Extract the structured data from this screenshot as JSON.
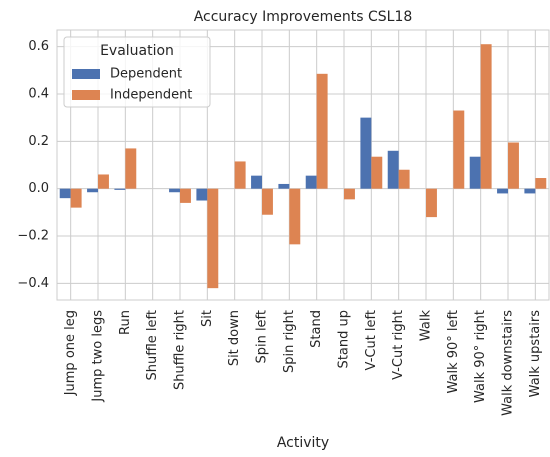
{
  "chart_data": {
    "type": "bar",
    "title": "Accuracy Improvements CSL18",
    "x_label": "Activity",
    "legend_title": "Evaluation",
    "legend": "upper left",
    "grid": true,
    "categories": [
      "Jump one leg",
      "Jump two legs",
      "Run",
      "Shuffle left",
      "Shuffle right",
      "Sit",
      "Sit down",
      "Spin left",
      "Spin right",
      "Stand",
      "Stand up",
      "V-Cut left",
      "V-Cut right",
      "Walk",
      "Walk 90° left",
      "Walk 90° right",
      "Walk downstairs",
      "Walk upstairs"
    ],
    "series": [
      {
        "name": "Dependent",
        "color": "#4c72b0",
        "values": [
          -0.04,
          -0.015,
          -0.005,
          0,
          -0.015,
          -0.05,
          0,
          0.055,
          0.02,
          0.055,
          0,
          0.3,
          0.16,
          0,
          0,
          0.135,
          -0.02,
          -0.02
        ]
      },
      {
        "name": "Independent",
        "color": "#dd8452",
        "values": [
          -0.08,
          0.06,
          0.17,
          0,
          -0.06,
          -0.42,
          0.115,
          -0.11,
          -0.235,
          0.485,
          -0.045,
          0.135,
          0.08,
          -0.12,
          0.33,
          0.61,
          0.195,
          0.045
        ]
      }
    ],
    "ylim": [
      -0.47,
      0.67
    ],
    "yticks": [
      {
        "value": -0.4,
        "label": "−0.4"
      },
      {
        "value": -0.2,
        "label": "−0.2"
      },
      {
        "value": 0,
        "label": "0.0"
      },
      {
        "value": 0.2,
        "label": "0.2"
      },
      {
        "value": 0.4,
        "label": "0.4"
      },
      {
        "value": 0.6,
        "label": "0.6"
      }
    ]
  }
}
